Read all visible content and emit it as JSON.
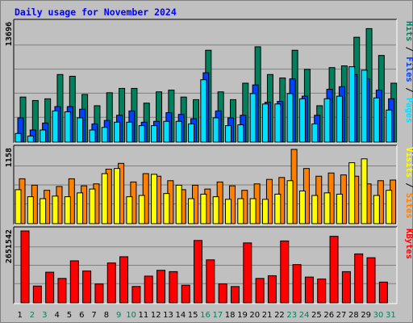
{
  "title": "Daily usage for November 2024",
  "chart_data": [
    {
      "type": "bar",
      "panel": "hits_files_pages",
      "y_label_max": "13696",
      "legend": [
        "Pages",
        "Files",
        "Hits"
      ],
      "colors": {
        "hits": "#00805c",
        "files": "#0040ff",
        "pages": "#00e0ff"
      },
      "ylim": [
        0,
        13696
      ],
      "categories": [
        "1",
        "2",
        "3",
        "4",
        "5",
        "6",
        "7",
        "8",
        "9",
        "10",
        "11",
        "12",
        "13",
        "14",
        "15",
        "16",
        "17",
        "18",
        "19",
        "20",
        "21",
        "22",
        "23",
        "24",
        "25",
        "26",
        "27",
        "28",
        "29",
        "30",
        "31"
      ],
      "series": [
        {
          "name": "Hits",
          "values": [
            5200,
            4800,
            5000,
            7800,
            7600,
            5500,
            4200,
            5700,
            6200,
            6200,
            4500,
            5800,
            6000,
            5200,
            4900,
            10600,
            5800,
            4900,
            6800,
            11000,
            7800,
            7400,
            10600,
            8400,
            4200,
            8600,
            8800,
            12100,
            13100,
            10000,
            6800
          ]
        },
        {
          "name": "Files",
          "values": [
            2800,
            1400,
            2200,
            4100,
            4100,
            3800,
            2100,
            2500,
            3100,
            3600,
            2300,
            2400,
            3400,
            3200,
            2700,
            8000,
            3600,
            2800,
            3100,
            6600,
            4600,
            4700,
            7300,
            5300,
            3100,
            6100,
            6400,
            7800,
            7300,
            6000,
            5000
          ]
        },
        {
          "name": "Pages",
          "values": [
            1000,
            700,
            1400,
            3600,
            3500,
            2800,
            1400,
            1700,
            2300,
            2300,
            1900,
            1900,
            2400,
            2400,
            2100,
            7200,
            2800,
            1900,
            2000,
            5600,
            4400,
            4400,
            5600,
            5000,
            2100,
            5000,
            5300,
            8700,
            8300,
            5100,
            3700
          ]
        }
      ]
    },
    {
      "type": "bar",
      "panel": "visits_sites",
      "y_label_max": "1158",
      "legend": [
        "Sites",
        "Visits"
      ],
      "colors": {
        "visits": "#ffff00",
        "sites": "#ff8000"
      },
      "ylim": [
        0,
        1158
      ],
      "categories": [
        "1",
        "2",
        "3",
        "4",
        "5",
        "6",
        "7",
        "8",
        "9",
        "10",
        "11",
        "12",
        "13",
        "14",
        "15",
        "16",
        "17",
        "18",
        "19",
        "20",
        "21",
        "22",
        "23",
        "24",
        "25",
        "26",
        "27",
        "28",
        "29",
        "30",
        "31"
      ],
      "series": [
        {
          "name": "Visits",
          "values": [
            530,
            420,
            390,
            430,
            420,
            480,
            540,
            780,
            860,
            420,
            440,
            770,
            470,
            600,
            390,
            460,
            420,
            380,
            390,
            390,
            380,
            460,
            670,
            510,
            440,
            480,
            460,
            950,
            1010,
            440,
            520
          ]
        },
        {
          "name": "Sites",
          "values": [
            700,
            600,
            520,
            580,
            700,
            590,
            620,
            850,
            940,
            650,
            780,
            740,
            670,
            530,
            600,
            540,
            650,
            590,
            520,
            620,
            690,
            720,
            1158,
            860,
            740,
            790,
            760,
            740,
            620,
            670,
            680
          ]
        }
      ]
    },
    {
      "type": "bar",
      "panel": "kbytes",
      "y_label_max": "2651542",
      "legend": [
        "KBytes"
      ],
      "colors": {
        "kbytes": "#ff0000"
      },
      "ylim": [
        0,
        2651542
      ],
      "categories": [
        "1",
        "2",
        "3",
        "4",
        "5",
        "6",
        "7",
        "8",
        "9",
        "10",
        "11",
        "12",
        "13",
        "14",
        "15",
        "16",
        "17",
        "18",
        "19",
        "20",
        "21",
        "22",
        "23",
        "24",
        "25",
        "26",
        "27",
        "28",
        "29",
        "30",
        "31"
      ],
      "series": [
        {
          "name": "KBytes",
          "values": [
            2651542,
            619000,
            1130000,
            900000,
            1550000,
            1175000,
            695000,
            1470000,
            1700000,
            603000,
            985000,
            1200000,
            1150000,
            650000,
            2300000,
            1585000,
            700000,
            600000,
            2210000,
            900000,
            1000000,
            2283000,
            1410000,
            950000,
            880000,
            2454000,
            1150000,
            1805000,
            1664000,
            765000,
            0
          ]
        }
      ]
    }
  ],
  "day_labels": [
    "1",
    "2",
    "3",
    "4",
    "5",
    "6",
    "7",
    "8",
    "9",
    "10",
    "11",
    "12",
    "13",
    "14",
    "15",
    "16",
    "17",
    "18",
    "19",
    "20",
    "21",
    "22",
    "23",
    "24",
    "25",
    "26",
    "27",
    "28",
    "29",
    "30",
    "31"
  ],
  "weekend_days": [
    2,
    3,
    9,
    10,
    16,
    17,
    23,
    24,
    30,
    31
  ],
  "label_colors": {
    "weekday": "#000000",
    "weekend": "#00805c"
  }
}
